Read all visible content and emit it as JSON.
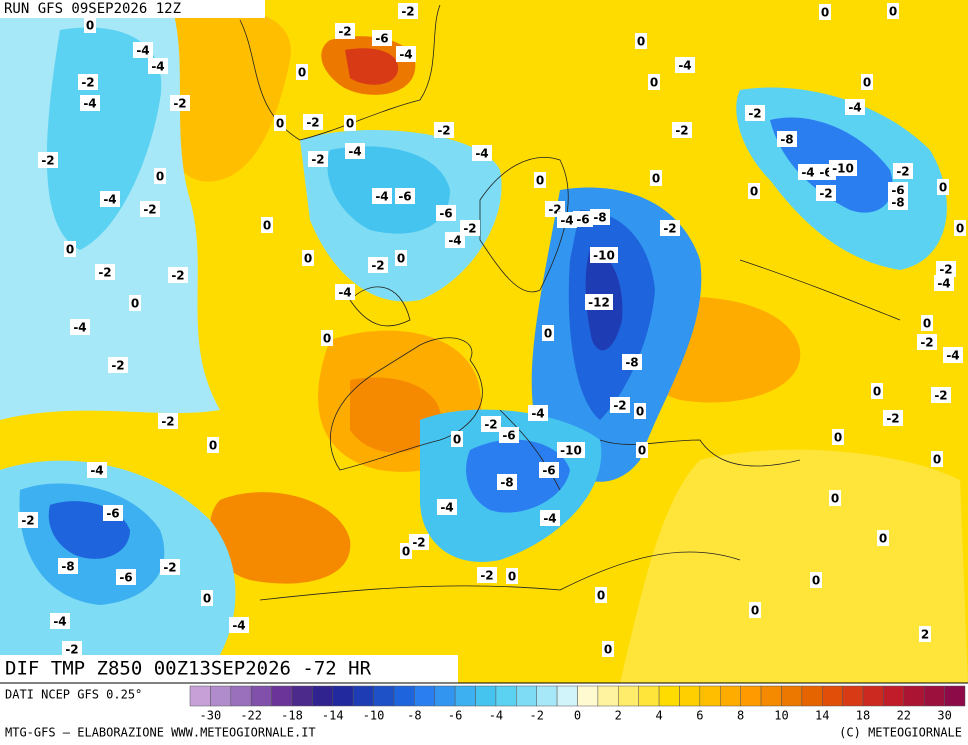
{
  "header": "RUN GFS 09SEP2026 12Z",
  "map_title": "DIF TMP Z850 00Z13SEP2026 -72 HR",
  "source": "DATI NCEP GFS 0.25°",
  "footer_left": "MTG-GFS — ELABORAZIONE WWW.METEOGIORNALE.IT",
  "footer_right": "(C) METEOGIORNALE",
  "colorbar": {
    "ticks": [
      -30,
      -22,
      -18,
      -14,
      -10,
      -8,
      -6,
      -4,
      -2,
      0,
      2,
      4,
      6,
      8,
      10,
      14,
      18,
      22,
      30
    ],
    "colors": [
      "#c8a0d8",
      "#b08ccc",
      "#9a70bc",
      "#8050aa",
      "#6a3498",
      "#4c2a8c",
      "#30228f",
      "#22289e",
      "#1e3cb4",
      "#1e50c8",
      "#1e64dc",
      "#2a7ef0",
      "#3296f0",
      "#3cb0f0",
      "#46c4f0",
      "#5cd2f2",
      "#7edcf5",
      "#a6e8f7",
      "#d0f4fa",
      "#fffad0",
      "#fff3a0",
      "#ffec6a",
      "#ffe53a",
      "#ffdc00",
      "#ffcf00",
      "#ffbe00",
      "#ffac00",
      "#ff9a00",
      "#f58a00",
      "#ec7800",
      "#e66400",
      "#e04e0a",
      "#d83a16",
      "#cc2a20",
      "#c01c2a",
      "#ac1434",
      "#9c103e",
      "#8c0a48"
    ]
  },
  "map": {
    "contour_labels": [
      -2,
      0,
      0,
      -2,
      -6,
      0,
      0,
      -4,
      -4,
      -4,
      0,
      -4,
      -2,
      0,
      0,
      -4,
      -2,
      -2,
      -4,
      0,
      -2,
      0,
      -2,
      -2,
      -8,
      -2,
      -4,
      -4,
      -2,
      -2,
      -4,
      -6,
      -10,
      0,
      0,
      0,
      0,
      -6,
      -8,
      0,
      -2,
      -4,
      -4,
      -6,
      -2,
      -6,
      -2,
      -4,
      -6,
      -8,
      -2,
      0,
      -4,
      -2,
      0,
      0,
      -10,
      0,
      -2,
      0,
      -2,
      -2,
      -2,
      -4,
      -4,
      -12,
      0,
      -4,
      0,
      0,
      0,
      -2,
      -4,
      -2,
      -8,
      0,
      -2,
      -2,
      0,
      -2,
      -2,
      -4,
      -2,
      -6,
      0,
      0,
      0,
      -10,
      0,
      0,
      -4,
      -6,
      -8,
      0,
      -4,
      -4,
      -2,
      -6,
      0,
      -2,
      0,
      -8,
      -6,
      -2,
      -2,
      0,
      0,
      0,
      0,
      0,
      -4,
      -4,
      2,
      -2,
      0
    ]
  }
}
